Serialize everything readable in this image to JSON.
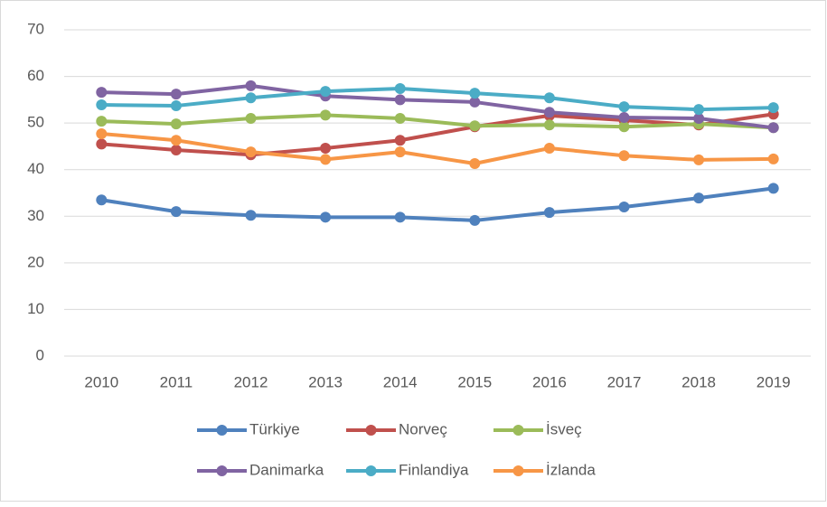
{
  "chart_data": {
    "type": "line",
    "categories": [
      "2010",
      "2011",
      "2012",
      "2013",
      "2014",
      "2015",
      "2016",
      "2017",
      "2018",
      "2019"
    ],
    "series": [
      {
        "name": "Türkiye",
        "color": "#4f81bd",
        "values": [
          33.5,
          31.0,
          30.2,
          29.8,
          29.8,
          29.1,
          30.8,
          32.0,
          33.9,
          36.0
        ]
      },
      {
        "name": "Norveç",
        "color": "#c0504d",
        "values": [
          45.5,
          44.2,
          43.2,
          44.6,
          46.3,
          49.2,
          51.6,
          50.6,
          49.6,
          51.9
        ]
      },
      {
        "name": "İsveç",
        "color": "#9bbb59",
        "values": [
          50.4,
          49.8,
          51.0,
          51.7,
          51.0,
          49.4,
          49.6,
          49.2,
          49.8,
          49.0
        ]
      },
      {
        "name": "Danimarka",
        "color": "#8064a2",
        "values": [
          56.6,
          56.2,
          58.0,
          55.8,
          55.0,
          54.5,
          52.3,
          51.2,
          51.0,
          49.0
        ]
      },
      {
        "name": "Finlandiya",
        "color": "#4bacc6",
        "values": [
          53.9,
          53.7,
          55.4,
          56.8,
          57.4,
          56.4,
          55.4,
          53.5,
          52.9,
          53.3
        ]
      },
      {
        "name": "İzlanda",
        "color": "#f79646",
        "values": [
          47.7,
          46.3,
          43.8,
          42.2,
          43.8,
          41.3,
          44.6,
          43.0,
          42.1,
          42.3
        ]
      }
    ],
    "ylim": [
      0,
      70
    ],
    "yticks": [
      0,
      10,
      20,
      30,
      40,
      50,
      60,
      70
    ],
    "grid": true,
    "legend": "bottom"
  }
}
